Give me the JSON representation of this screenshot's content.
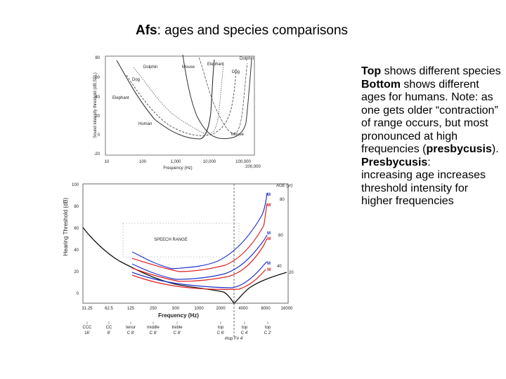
{
  "title": {
    "bold": "Afs",
    "rest": ": ages and species comparisons"
  },
  "bullets": [
    {
      "bold": "Top",
      "text": " shows different species"
    },
    {
      "bold": "Bottom",
      "text": " shows different ages for humans. Note: as one gets older “contraction” of range occurs, but most pronounced at high frequencies (",
      "bold2": "presbycusis",
      "tail": ")."
    },
    {
      "bold": "Presbycusis",
      "text": ":"
    },
    {
      "bold": "",
      "text": "increasing age increases threshold intensity for higher frequencies"
    }
  ],
  "top_chart": {
    "ylabel": "Sound intensity threshold (dB,SPL)",
    "xlabel": "Frequency (Hz)",
    "yticks": [
      "80",
      "60",
      "40",
      "20",
      "0",
      "-20"
    ],
    "xticks": [
      "10",
      "100",
      "1,000",
      "10,000",
      "100,000",
      "200,000"
    ],
    "species": [
      "Dolphin",
      "Mouse",
      "Elephant",
      "Dolphin",
      "Dog",
      "Dog",
      "Elephant",
      "Human",
      "Mouse"
    ]
  },
  "bottom_chart": {
    "ylabel": "Hearing Threshold (dB)",
    "xlabel": "Frequency (Hz)",
    "yticks": [
      "100",
      "80",
      "60",
      "40",
      "20",
      "0"
    ],
    "xticks": [
      "31.25",
      "62.5",
      "125",
      "250",
      "500",
      "1000",
      "2000",
      "4000",
      "8000",
      "16000"
    ],
    "age_header": "AGE (yr)",
    "speech_range": "SPEECH RANGE",
    "ages": [
      "80",
      "60",
      "40",
      "20"
    ],
    "m_label": "M",
    "w_label": "W",
    "colors": {
      "men": "#2233cc",
      "women": "#dd2222"
    },
    "notes": [
      {
        "top": "CCC",
        "bottom": "16'"
      },
      {
        "top": "CC",
        "bottom": "8'"
      },
      {
        "top": "tenor",
        "bottom": "C 8'"
      },
      {
        "top": "middle",
        "bottom": "C 8'"
      },
      {
        "top": "treble",
        "bottom": "C 8'"
      },
      {
        "top": "top",
        "bottom": "C 6'"
      },
      {
        "top": "top",
        "bottom": "C 4'"
      },
      {
        "top": "top",
        "bottom": "C 2'"
      }
    ],
    "footnote": "#top F# 4'"
  }
}
